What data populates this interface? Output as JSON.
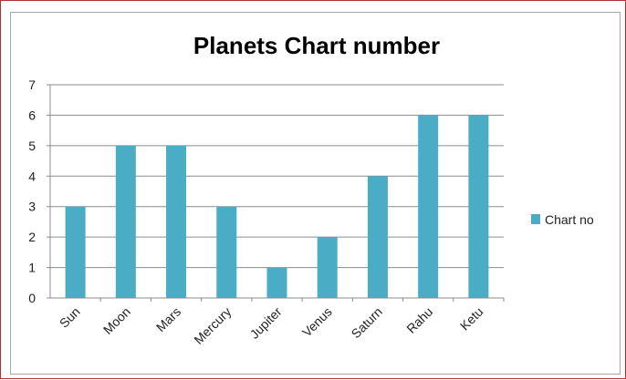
{
  "chart_data": {
    "type": "bar",
    "title": "Planets Chart number",
    "categories": [
      "Sun",
      "Moon",
      "Mars",
      "Mercury",
      "Jupiter",
      "Venus",
      "Saturn",
      "Rahu",
      "Ketu"
    ],
    "series": [
      {
        "name": "Chart no",
        "values": [
          3,
          5,
          5,
          3,
          1,
          2,
          4,
          6,
          6
        ],
        "color": "#4bacc6"
      }
    ],
    "ylim": [
      0,
      7
    ],
    "yticks": [
      "0",
      "1",
      "2",
      "3",
      "4",
      "5",
      "6",
      "7"
    ],
    "grid": true,
    "legend_position": "right"
  }
}
